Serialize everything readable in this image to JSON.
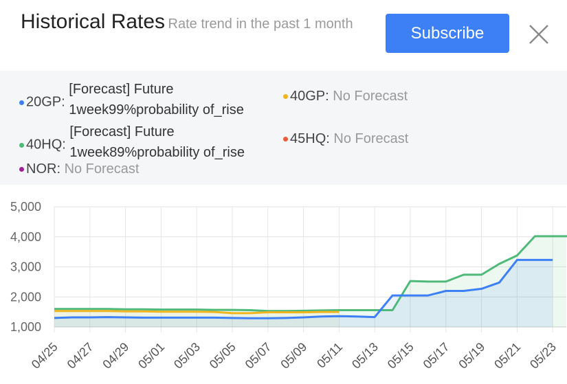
{
  "header": {
    "title": "Historical Rates",
    "subtitle": "Rate trend in the past 1 month",
    "subscribe_label": "Subscribe"
  },
  "legend": [
    {
      "name": "20GP",
      "label": "20GP:",
      "color": "#3d7ff5",
      "forecast_line1": "[Forecast] Future",
      "forecast_line2": "1week99%probability of_rise"
    },
    {
      "name": "40GP",
      "label": "40GP:",
      "color": "#f0b41e",
      "value": "No Forecast"
    },
    {
      "name": "40HQ",
      "label": "40HQ:",
      "color": "#4fb97a",
      "forecast_line1": "[Forecast] Future",
      "forecast_line2": "1week89%probability of_rise"
    },
    {
      "name": "45HQ",
      "label": "45HQ:",
      "color": "#ef5a3a",
      "value": "No Forecast"
    },
    {
      "name": "NOR",
      "label": "NOR:",
      "color": "#a01f9a",
      "value": "No Forecast"
    }
  ],
  "chart_data": {
    "type": "line",
    "x": [
      "04/25",
      "04/26",
      "04/27",
      "04/28",
      "04/29",
      "04/30",
      "05/01",
      "05/02",
      "05/03",
      "05/04",
      "05/05",
      "05/06",
      "05/07",
      "05/08",
      "05/09",
      "05/10",
      "05/11",
      "05/12",
      "05/13",
      "05/14",
      "05/15",
      "05/16",
      "05/17",
      "05/18",
      "05/19",
      "05/20",
      "05/21",
      "05/22",
      "05/23",
      "05/24"
    ],
    "xticks": [
      "04/25",
      "04/27",
      "04/29",
      "05/01",
      "05/03",
      "05/05",
      "05/07",
      "05/09",
      "05/11",
      "05/13",
      "05/15",
      "05/17",
      "05/19",
      "05/21",
      "05/23"
    ],
    "yticks": [
      "1,000",
      "2,000",
      "3,000",
      "4,000",
      "5,000"
    ],
    "ylim": [
      1000,
      5000
    ],
    "grid": true,
    "series": [
      {
        "name": "20GP",
        "color": "#3d7ff5",
        "values": [
          1300,
          1320,
          1320,
          1330,
          1320,
          1310,
          1310,
          1310,
          1310,
          1310,
          1300,
          1290,
          1290,
          1300,
          1320,
          1350,
          1360,
          1350,
          1330,
          2050,
          2050,
          2050,
          2200,
          2200,
          2270,
          2480,
          3230,
          3230,
          3230,
          null
        ]
      },
      {
        "name": "40GP",
        "color": "#f0b41e",
        "values": [
          1530,
          1530,
          1530,
          1530,
          1520,
          1520,
          1510,
          1510,
          1510,
          1500,
          1460,
          1460,
          1490,
          1490,
          1490,
          1500,
          1500,
          null,
          null,
          null,
          null,
          null,
          null,
          null,
          null,
          null,
          null,
          null,
          null,
          null
        ]
      },
      {
        "name": "40HQ",
        "color": "#4fb97a",
        "values": [
          1600,
          1600,
          1600,
          1600,
          1590,
          1590,
          1580,
          1580,
          1580,
          1570,
          1570,
          1560,
          1530,
          1530,
          1540,
          1550,
          1560,
          1560,
          1560,
          1560,
          2530,
          2510,
          2510,
          2740,
          2740,
          3100,
          3380,
          4020,
          4020,
          4020
        ]
      }
    ]
  }
}
